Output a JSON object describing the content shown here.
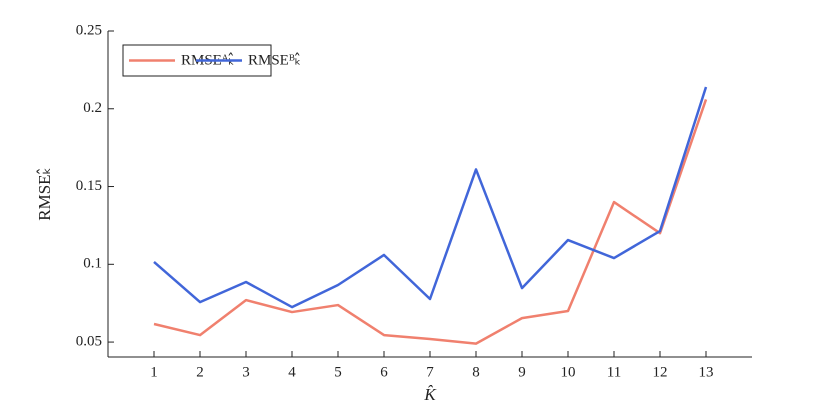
{
  "chart_data": {
    "type": "line",
    "xlabel": "K̂",
    "ylabel": "RMSEₖ̂",
    "x": [
      1,
      2,
      3,
      4,
      5,
      6,
      7,
      8,
      9,
      10,
      11,
      12,
      13
    ],
    "series": [
      {
        "name": "RMSEᴬₖ̂",
        "color": "#f0806e",
        "values": [
          0.0616,
          0.0545,
          0.077,
          0.0693,
          0.0738,
          0.0545,
          0.052,
          0.049,
          0.0654,
          0.07,
          0.14,
          0.12,
          0.206
        ]
      },
      {
        "name": "RMSEᴮₖ̂",
        "color": "#4166d9",
        "values": [
          0.1015,
          0.0757,
          0.0886,
          0.0725,
          0.0867,
          0.106,
          0.0777,
          0.161,
          0.0847,
          0.1156,
          0.104,
          0.1214,
          0.214
        ]
      }
    ],
    "xlim": [
      0,
      14
    ],
    "xticks": [
      1,
      2,
      3,
      4,
      5,
      6,
      7,
      8,
      9,
      10,
      11,
      12,
      13
    ],
    "ylim": [
      0.0404,
      0.25
    ],
    "yticks": [
      0.05,
      0.1,
      0.15,
      0.2,
      0.25
    ],
    "legend": "upper-left"
  }
}
